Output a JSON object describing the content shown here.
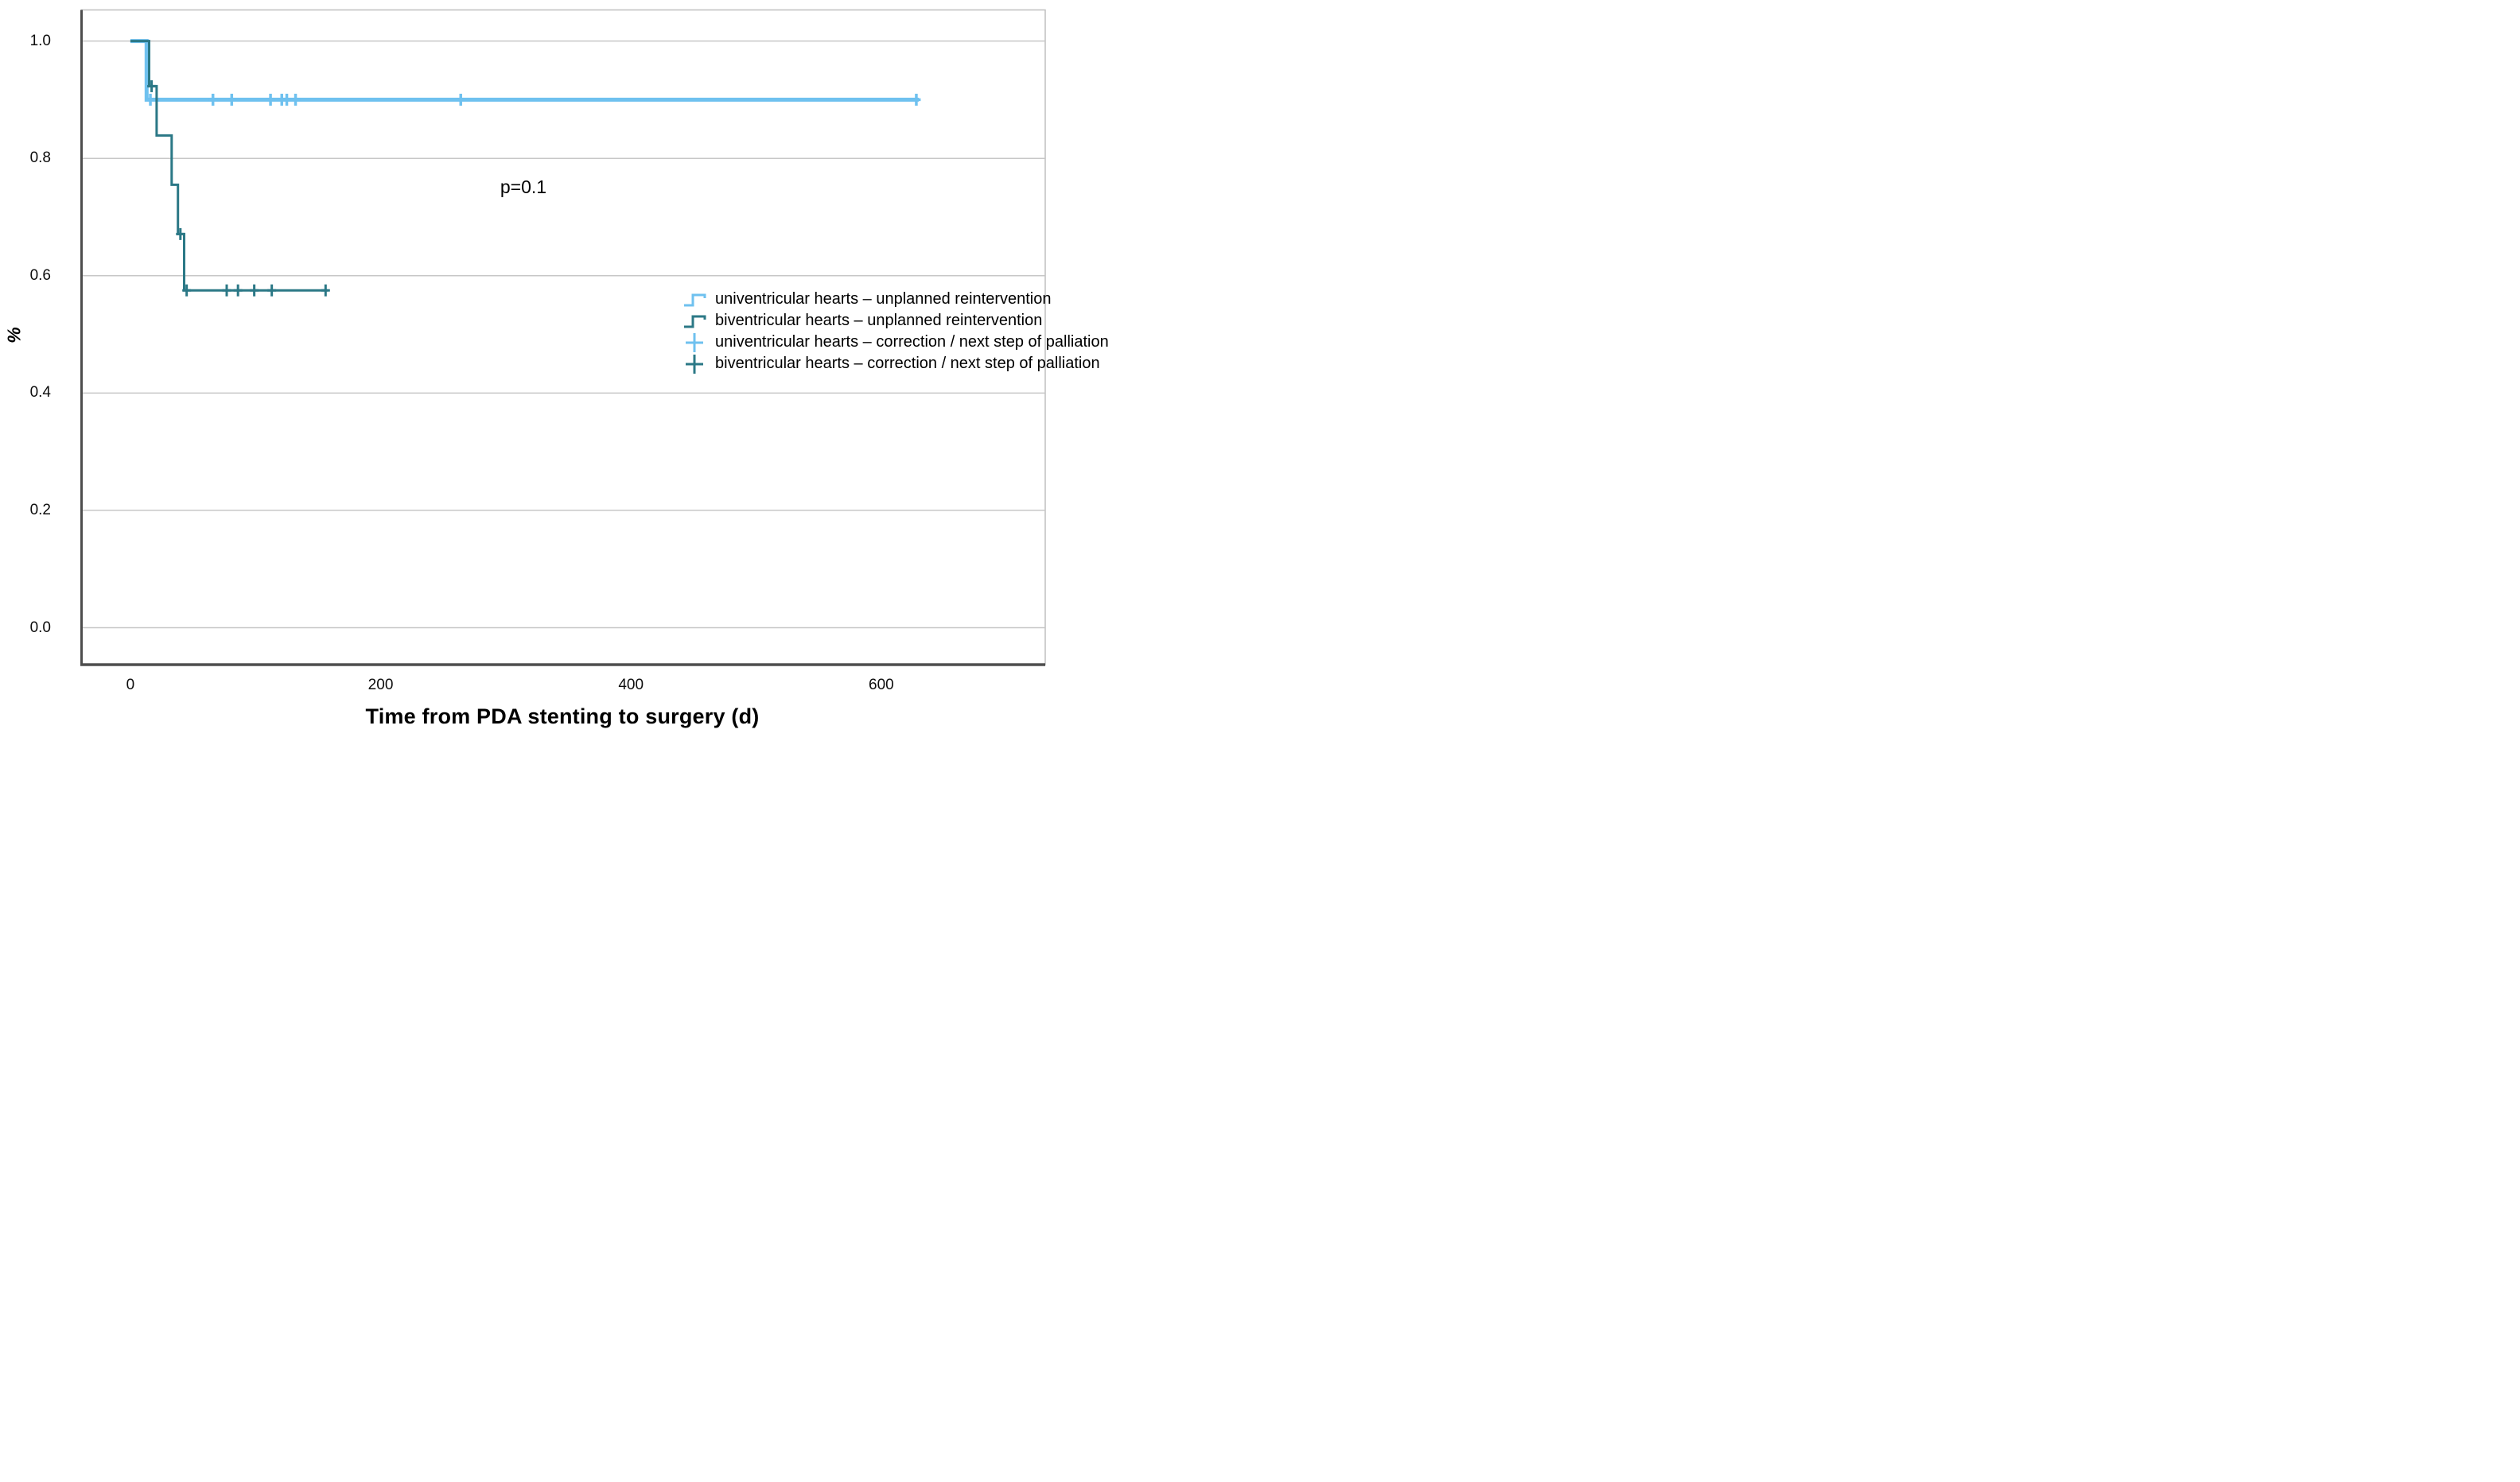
{
  "chart_data": {
    "type": "line",
    "subtype": "kaplan-meier-step-plot",
    "title": "",
    "xlabel": "Time from PDA stenting to surgery (d)",
    "ylabel": "%",
    "annotation": "p=0.1",
    "grid": true,
    "legend_position": "middle-right",
    "xlim": [
      -39,
      731
    ],
    "ylim": [
      -0.063,
      1.053
    ],
    "x_ticks": [
      {
        "value": 0,
        "label": "0"
      },
      {
        "value": 200,
        "label": "200"
      },
      {
        "value": 400,
        "label": "400"
      },
      {
        "value": 600,
        "label": "600"
      }
    ],
    "y_ticks": [
      {
        "value": 1.0,
        "label": "1.0"
      },
      {
        "value": 0.8,
        "label": "0.8"
      },
      {
        "value": 0.6,
        "label": "0.6"
      },
      {
        "value": 0.4,
        "label": "0.4"
      },
      {
        "value": 0.2,
        "label": "0.2"
      },
      {
        "value": 0.0,
        "label": "0.0"
      }
    ],
    "style": {
      "grid_color": "#c7c7c7",
      "axis_color": "#4d4d4d",
      "border_color": "#bfbfbf",
      "text_color": "#000000",
      "background": "#ffffff"
    },
    "series": [
      {
        "name": "univentricular hearts",
        "color": "#6fc1ef",
        "stroke_width": 5,
        "censor_stroke": 3.5,
        "steps": [
          [
            0,
            1.0
          ],
          [
            13,
            1.0
          ],
          [
            13,
            0.9
          ],
          [
            630,
            0.9
          ]
        ],
        "censors": [
          [
            16,
            0.9
          ],
          [
            66,
            0.9
          ],
          [
            81,
            0.9
          ],
          [
            112,
            0.9
          ],
          [
            121,
            0.9
          ],
          [
            125,
            0.9
          ],
          [
            132,
            0.9
          ],
          [
            264,
            0.9
          ],
          [
            628,
            0.9
          ]
        ]
      },
      {
        "name": "biventricular hearts",
        "color": "#2b7886",
        "stroke_width": 3,
        "censor_stroke": 3,
        "steps": [
          [
            0,
            1.0
          ],
          [
            15,
            1.0
          ],
          [
            15,
            0.923
          ],
          [
            21,
            0.923
          ],
          [
            21,
            0.839
          ],
          [
            33,
            0.839
          ],
          [
            33,
            0.755
          ],
          [
            38,
            0.755
          ],
          [
            38,
            0.671
          ],
          [
            43,
            0.671
          ],
          [
            43,
            0.575
          ],
          [
            158,
            0.575
          ]
        ],
        "censors": [
          [
            17,
            0.923
          ],
          [
            40,
            0.671
          ],
          [
            45,
            0.575
          ],
          [
            77,
            0.575
          ],
          [
            86,
            0.575
          ],
          [
            99,
            0.575
          ],
          [
            113,
            0.575
          ],
          [
            156,
            0.575
          ]
        ]
      }
    ],
    "legend": [
      {
        "label": "univentricular hearts – unplanned reintervention",
        "symbol": "step",
        "color": "#6fc1ef"
      },
      {
        "label": "biventricular hearts – unplanned reintervention",
        "symbol": "step",
        "color": "#2b7886"
      },
      {
        "label": "univentricular hearts – correction / next step of palliation",
        "symbol": "plus",
        "color": "#6fc1ef"
      },
      {
        "label": "biventricular hearts – correction / next step of palliation",
        "symbol": "plus",
        "color": "#2b7886"
      }
    ]
  }
}
